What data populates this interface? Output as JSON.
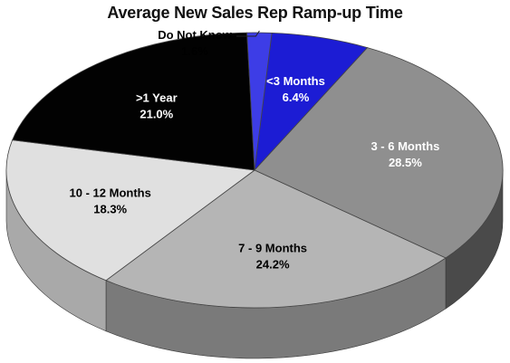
{
  "chart_data": {
    "type": "pie",
    "title": "Average New Sales Rep Ramp-up Time",
    "three_d": true,
    "legend": "none",
    "slices": [
      {
        "label": "<3 Months",
        "value": 6.4,
        "display": "6.4%",
        "color": "#1c1cd4",
        "side_color": "#0f0f80",
        "label_color": "#ffffff"
      },
      {
        "label": "3 - 6 Months",
        "value": 28.5,
        "display": "28.5%",
        "color": "#8f8f8f",
        "side_color": "#4a4a4a",
        "label_color": "#ffffff"
      },
      {
        "label": "7 - 9 Months",
        "value": 24.2,
        "display": "24.2%",
        "color": "#b5b5b5",
        "side_color": "#7a7a7a",
        "label_color": "#000000"
      },
      {
        "label": "10 - 12 Months",
        "value": 18.3,
        "display": "18.3%",
        "color": "#e0e0e0",
        "side_color": "#a9a9a9",
        "label_color": "#000000"
      },
      {
        "label": ">1 Year",
        "value": 21.0,
        "display": "21.0%",
        "color": "#020202",
        "side_color": "#000000",
        "label_color": "#ffffff"
      },
      {
        "label": "Do Not Know",
        "value": 1.6,
        "display": "1.6%",
        "color": "#3d3de6",
        "side_color": "#1e1e99",
        "label_color": "#000000",
        "callout": true
      }
    ]
  }
}
